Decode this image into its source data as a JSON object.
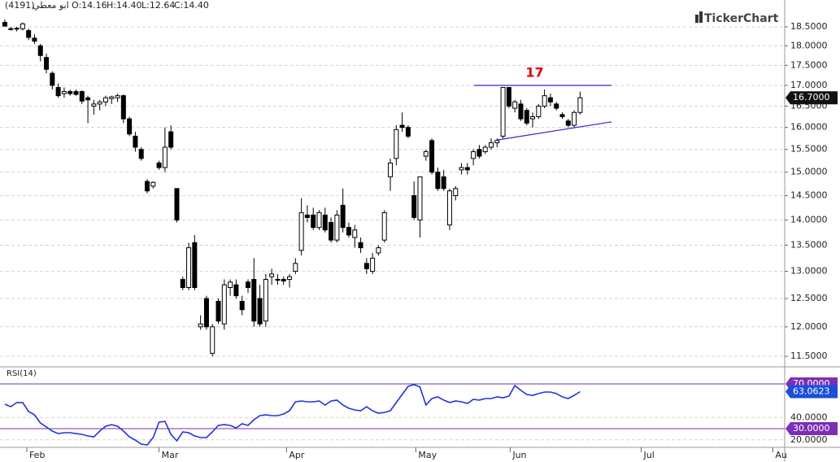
{
  "header": {
    "symbol": "ابو معطي",
    "code": "(4191)",
    "ohlc": [
      "O:14.16",
      "H:14.40",
      "L:12.64",
      "C:14.40"
    ],
    "brand": "TickerChart"
  },
  "chart_data": [
    {
      "type": "candlestick",
      "log": true,
      "grid": true,
      "up_color": "#ffffff",
      "down_color": "#000000",
      "xlim": [
        -0.82,
        131.5
      ],
      "ylim": [
        11.34,
        19.23
      ],
      "xticks": [
        {
          "value": 3.7,
          "label": "Feb"
        },
        {
          "value": 26,
          "label": "Mar"
        },
        {
          "value": 47.5,
          "label": "Apr"
        },
        {
          "value": 69.3,
          "label": "May"
        },
        {
          "value": 85.2,
          "label": "Jun"
        },
        {
          "value": 107.3,
          "label": "Jul"
        },
        {
          "value": 129.5,
          "label": "Au"
        }
      ],
      "yticks": [
        {
          "value": 11.5,
          "label": "11.5000"
        },
        {
          "value": 12,
          "label": "12.0000"
        },
        {
          "value": 12.5,
          "label": "12.5000"
        },
        {
          "value": 13,
          "label": "13.0000"
        },
        {
          "value": 13.5,
          "label": "13.5000"
        },
        {
          "value": 14,
          "label": "14.0000"
        },
        {
          "value": 14.5,
          "label": "14.5000"
        },
        {
          "value": 15,
          "label": "15.0000"
        },
        {
          "value": 15.5,
          "label": "15.5000"
        },
        {
          "value": 16,
          "label": "16.0000"
        },
        {
          "value": 16.5,
          "label": "16.5000"
        },
        {
          "value": 17,
          "label": "17.0000"
        },
        {
          "value": 17.5,
          "label": "17.5000"
        },
        {
          "value": 18,
          "label": "18.0000"
        },
        {
          "value": 18.5,
          "label": "18.5000"
        }
      ],
      "open": [
        18.62,
        18.45,
        18.44,
        18.45,
        18.4,
        18.2,
        18.0,
        17.7,
        17.3,
        16.95,
        16.8,
        16.85,
        16.85,
        16.85,
        16.7,
        16.5,
        16.55,
        16.6,
        16.68,
        16.7,
        16.75,
        16.2,
        15.8,
        15.5,
        14.8,
        14.7,
        15.2,
        15.1,
        15.9,
        14.65,
        12.85,
        12.7,
        13.55,
        12.0,
        12.5,
        11.55,
        12.45,
        12.05,
        12.7,
        12.75,
        12.45,
        12.8,
        12.85,
        12.5,
        12.1,
        12.9,
        12.85,
        12.85,
        12.85,
        13.0,
        13.4,
        14.1,
        14.1,
        13.85,
        14.1,
        13.95,
        13.6,
        14.3,
        13.85,
        13.65,
        13.55,
        13.15,
        13.0,
        13.35,
        13.6,
        14.9,
        15.3,
        16.05,
        16.0,
        14.5,
        14.0,
        15.35,
        15.7,
        15.0,
        14.9,
        13.9,
        14.5,
        15.05,
        15.1,
        15.3,
        15.5,
        15.45,
        15.55,
        15.65,
        15.8,
        16.95,
        16.45,
        16.55,
        16.4,
        16.2,
        16.25,
        16.5,
        16.7,
        16.55,
        16.3,
        16.15,
        16.05,
        16.35
      ],
      "high": [
        18.7,
        18.5,
        18.5,
        18.62,
        18.45,
        18.3,
        18.05,
        17.8,
        17.35,
        17.05,
        16.95,
        16.9,
        16.9,
        16.88,
        16.75,
        16.65,
        16.65,
        16.75,
        16.75,
        16.8,
        16.78,
        16.25,
        15.9,
        15.55,
        14.85,
        14.8,
        15.25,
        16.0,
        16.05,
        14.65,
        12.9,
        13.55,
        13.7,
        12.2,
        12.55,
        12.05,
        12.5,
        12.85,
        12.85,
        12.85,
        12.55,
        12.85,
        13.25,
        12.75,
        12.95,
        13.05,
        12.95,
        12.9,
        12.95,
        13.25,
        14.45,
        14.3,
        14.25,
        14.2,
        14.25,
        14.05,
        14.2,
        14.65,
        13.95,
        13.9,
        13.65,
        13.25,
        13.35,
        13.5,
        14.2,
        15.3,
        16.05,
        16.35,
        16.05,
        14.8,
        14.9,
        15.5,
        15.75,
        15.1,
        15.05,
        14.65,
        14.7,
        15.2,
        15.2,
        15.5,
        15.6,
        15.6,
        15.75,
        15.75,
        16.95,
        16.95,
        16.65,
        16.65,
        16.45,
        16.35,
        16.55,
        16.9,
        16.8,
        16.6,
        16.35,
        16.2,
        16.4,
        16.85
      ],
      "low": [
        18.5,
        18.4,
        18.38,
        18.4,
        18.15,
        18.05,
        17.6,
        17.3,
        16.9,
        16.7,
        16.7,
        16.75,
        16.75,
        16.55,
        16.1,
        16.3,
        16.4,
        16.5,
        16.55,
        16.6,
        16.1,
        15.8,
        15.45,
        15.25,
        14.55,
        14.65,
        15.05,
        15.0,
        15.5,
        13.95,
        12.65,
        12.65,
        12.65,
        11.95,
        11.95,
        11.5,
        12.05,
        11.95,
        12.55,
        12.5,
        12.2,
        12.6,
        12.0,
        12.0,
        12.0,
        12.75,
        12.75,
        12.75,
        12.7,
        12.95,
        13.3,
        13.95,
        13.8,
        13.8,
        13.75,
        13.55,
        13.55,
        13.75,
        13.65,
        13.45,
        13.35,
        12.95,
        12.95,
        13.3,
        13.55,
        14.6,
        15.15,
        15.9,
        15.75,
        14.0,
        13.65,
        15.25,
        14.95,
        14.6,
        14.6,
        13.8,
        14.4,
        14.95,
        14.95,
        15.15,
        15.3,
        15.4,
        15.5,
        15.55,
        15.75,
        16.45,
        16.35,
        16.15,
        16.05,
        16.0,
        16.2,
        16.45,
        16.5,
        16.4,
        16.2,
        16.0,
        16.0,
        16.3
      ],
      "close": [
        18.52,
        18.43,
        18.46,
        18.58,
        18.22,
        18.12,
        17.75,
        17.4,
        17.0,
        16.75,
        16.85,
        16.8,
        16.78,
        16.62,
        16.65,
        16.55,
        16.6,
        16.7,
        16.72,
        16.75,
        16.2,
        15.85,
        15.55,
        15.3,
        14.6,
        14.78,
        15.1,
        15.55,
        15.55,
        14.0,
        12.7,
        13.45,
        12.7,
        12.05,
        12.0,
        12.0,
        12.1,
        12.75,
        12.8,
        12.55,
        12.3,
        12.7,
        12.1,
        12.05,
        12.85,
        12.95,
        12.85,
        12.82,
        12.9,
        13.15,
        14.15,
        14.05,
        13.85,
        14.15,
        13.8,
        13.6,
        14.1,
        13.85,
        13.7,
        13.8,
        13.45,
        13.05,
        13.25,
        13.45,
        14.15,
        15.2,
        15.95,
        16.0,
        15.8,
        14.05,
        14.9,
        15.45,
        15.0,
        14.65,
        14.65,
        14.6,
        14.65,
        15.1,
        15.05,
        15.45,
        15.35,
        15.55,
        15.65,
        15.7,
        16.95,
        16.5,
        16.6,
        16.2,
        16.1,
        16.25,
        16.5,
        16.75,
        16.6,
        16.45,
        16.25,
        16.05,
        16.35,
        16.7
      ],
      "last_label": "16.7000",
      "trendlines": [
        {
          "color": "#2b2bd0",
          "x": [
            79.1,
            102.3
          ],
          "y": [
            17,
            17
          ]
        },
        {
          "color": "#2b2bd0",
          "x": [
            82.9,
            102.3
          ],
          "y": [
            15.71,
            16.13
          ]
        }
      ],
      "annotation": "17",
      "annotation_color": "#e00000"
    },
    {
      "type": "line",
      "title": "RSI(14)",
      "color": "#2233dd",
      "ylim": [
        13.3,
        84.5
      ],
      "yticks": [
        {
          "value": 20,
          "label": "20.0000"
        },
        {
          "value": 40,
          "label": "40.0000"
        }
      ],
      "values": [
        51.8,
        49.6,
        53.3,
        53.3,
        45.3,
        42.4,
        35.1,
        31.5,
        27.8,
        25.6,
        26.4,
        26.4,
        25.6,
        24.9,
        23.5,
        22.7,
        27.8,
        32.2,
        33.6,
        32.2,
        27.8,
        22.7,
        19.8,
        16.2,
        15.5,
        22.0,
        35.8,
        36.5,
        24.9,
        19.1,
        27.1,
        26.4,
        23.5,
        22.0,
        22.0,
        27.1,
        32.9,
        33.6,
        32.9,
        30.7,
        34.4,
        32.9,
        38.0,
        41.6,
        42.4,
        41.6,
        41.6,
        43.1,
        46.0,
        54.0,
        54.7,
        54.0,
        54.0,
        54.7,
        51.1,
        54.7,
        55.5,
        51.1,
        48.2,
        46.7,
        46.0,
        49.6,
        46.0,
        43.8,
        44.5,
        46.0,
        53.3,
        60.5,
        67.8,
        69.3,
        67.1,
        51.1,
        56.9,
        58.4,
        55.5,
        53.3,
        54.7,
        54.0,
        52.5,
        56.2,
        55.5,
        56.9,
        56.9,
        58.4,
        57.6,
        59.1,
        68.5,
        64.2,
        60.5,
        59.8,
        61.3,
        62.7,
        62.7,
        61.3,
        58.4,
        56.9,
        59.8,
        63.0623
      ],
      "last_label": "63.0623",
      "last_color": "#1a4fd8",
      "hlines": [
        {
          "value": 70,
          "label": "70.0000"
        },
        {
          "value": 30,
          "label": "30.0000"
        }
      ],
      "hline_color": "#7a2fb5"
    }
  ]
}
